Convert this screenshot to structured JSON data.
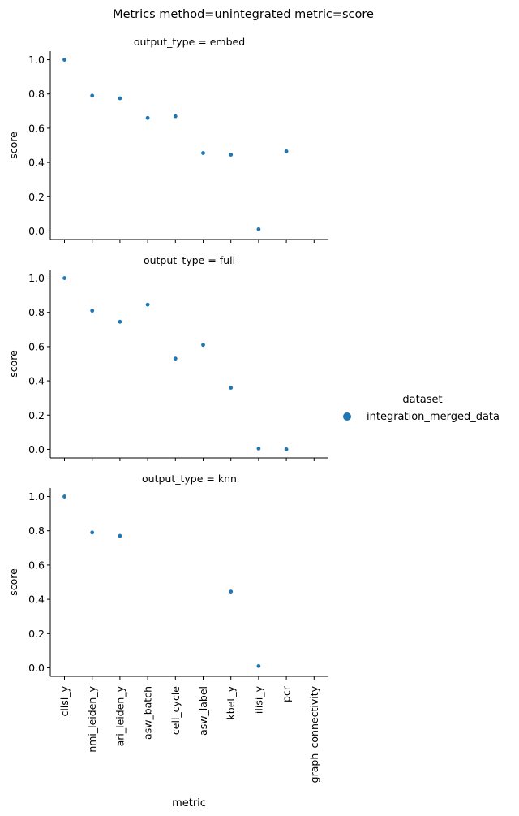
{
  "chart_data": {
    "type": "scatter",
    "title": "Metrics method=unintegrated metric=score",
    "xlabel": "metric",
    "ylabel": "score",
    "ylim": [
      -0.05,
      1.05
    ],
    "yticks": [
      "0.0",
      "0.2",
      "0.4",
      "0.6",
      "0.8",
      "1.0"
    ],
    "categories": [
      "clisi_y",
      "nmi_leiden_y",
      "ari_leiden_y",
      "asw_batch",
      "cell_cycle",
      "asw_label",
      "kbet_y",
      "ilisi_y",
      "pcr",
      "graph_connectivity"
    ],
    "legend": {
      "title": "dataset",
      "position": "right",
      "entries": [
        {
          "name": "integration_merged_data",
          "color": "#1f77b4"
        }
      ]
    },
    "point_color": "#1f77b4",
    "panels": [
      {
        "title": "output_type = embed",
        "values": [
          1.0,
          0.79,
          0.775,
          0.66,
          0.67,
          0.455,
          0.445,
          0.01,
          0.465,
          null
        ]
      },
      {
        "title": "output_type = full",
        "values": [
          1.0,
          0.81,
          0.745,
          0.845,
          0.53,
          0.61,
          0.36,
          0.005,
          0.0,
          null
        ]
      },
      {
        "title": "output_type = knn",
        "values": [
          1.0,
          0.79,
          0.77,
          null,
          null,
          null,
          0.445,
          0.01,
          null,
          null
        ]
      }
    ]
  }
}
